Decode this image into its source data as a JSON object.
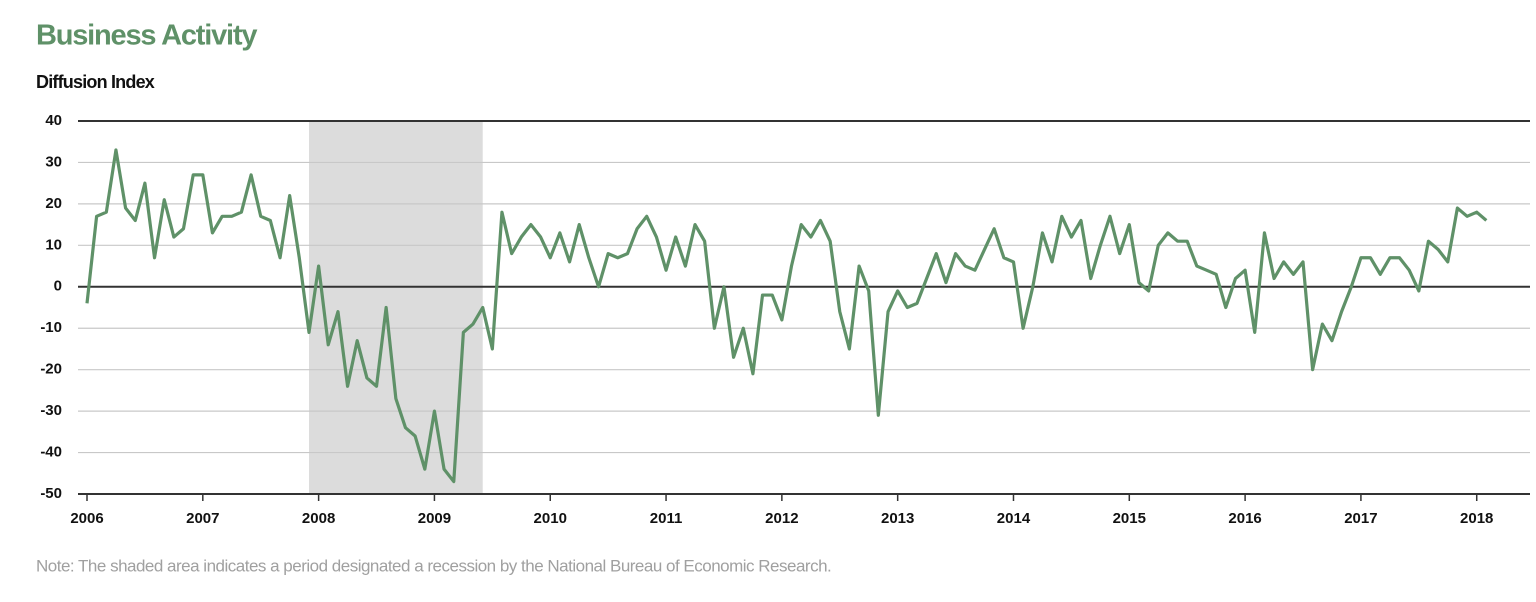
{
  "chart_data": {
    "type": "line",
    "title": "Business Activity",
    "subtitle": "Diffusion Index",
    "note": "Note: The shaded area indicates a period designated a recession by the National Bureau of Economic Research.",
    "x": [
      2006,
      2006.083,
      2006.167,
      2006.25,
      2006.333,
      2006.417,
      2006.5,
      2006.583,
      2006.667,
      2006.75,
      2006.833,
      2006.917,
      2007,
      2007.083,
      2007.167,
      2007.25,
      2007.333,
      2007.417,
      2007.5,
      2007.583,
      2007.667,
      2007.75,
      2007.833,
      2007.917,
      2008,
      2008.083,
      2008.167,
      2008.25,
      2008.333,
      2008.417,
      2008.5,
      2008.583,
      2008.667,
      2008.75,
      2008.833,
      2008.917,
      2009,
      2009.083,
      2009.167,
      2009.25,
      2009.333,
      2009.417,
      2009.5,
      2009.583,
      2009.667,
      2009.75,
      2009.833,
      2009.917,
      2010,
      2010.083,
      2010.167,
      2010.25,
      2010.333,
      2010.417,
      2010.5,
      2010.583,
      2010.667,
      2010.75,
      2010.833,
      2010.917,
      2011,
      2011.083,
      2011.167,
      2011.25,
      2011.333,
      2011.417,
      2011.5,
      2011.583,
      2011.667,
      2011.75,
      2011.833,
      2011.917,
      2012,
      2012.083,
      2012.167,
      2012.25,
      2012.333,
      2012.417,
      2012.5,
      2012.583,
      2012.667,
      2012.75,
      2012.833,
      2012.917,
      2013,
      2013.083,
      2013.167,
      2013.25,
      2013.333,
      2013.417,
      2013.5,
      2013.583,
      2013.667,
      2013.75,
      2013.833,
      2013.917,
      2014,
      2014.083,
      2014.167,
      2014.25,
      2014.333,
      2014.417,
      2014.5,
      2014.583,
      2014.667,
      2014.75,
      2014.833,
      2014.917,
      2015,
      2015.083,
      2015.167,
      2015.25,
      2015.333,
      2015.417,
      2015.5,
      2015.583,
      2015.667,
      2015.75,
      2015.833,
      2015.917,
      2016,
      2016.083,
      2016.167,
      2016.25,
      2016.333,
      2016.417,
      2016.5,
      2016.583,
      2016.667,
      2016.75,
      2016.833,
      2016.917,
      2017,
      2017.083,
      2017.167,
      2017.25,
      2017.333,
      2017.417,
      2017.5,
      2017.583,
      2017.667,
      2017.75,
      2017.833,
      2017.917,
      2018,
      2018.083
    ],
    "series": [
      {
        "name": "Business Activity",
        "color": "#5f9168",
        "values": [
          -4,
          17,
          18,
          33,
          19,
          16,
          25,
          7,
          21,
          12,
          14,
          27,
          27,
          13,
          17,
          17,
          18,
          27,
          17,
          16,
          7,
          22,
          7,
          -11,
          5,
          -14,
          -6,
          -24,
          -13,
          -22,
          -24,
          -5,
          -27,
          -34,
          -36,
          -44,
          -30,
          -44,
          -47,
          -11,
          -9,
          -5,
          -15,
          18,
          8,
          12,
          15,
          12,
          7,
          13,
          6,
          15,
          7,
          0,
          8,
          7,
          8,
          14,
          17,
          12,
          4,
          12,
          5,
          15,
          11,
          -10,
          0,
          -17,
          -10,
          -21,
          -2,
          -2,
          -8,
          5,
          15,
          12,
          16,
          11,
          -6,
          -15,
          5,
          -1,
          -31,
          -6,
          -1,
          -5,
          -4,
          2,
          8,
          1,
          8,
          5,
          4,
          9,
          14,
          7,
          6,
          -10,
          0,
          13,
          6,
          17,
          12,
          16,
          2,
          10,
          17,
          8,
          15,
          1,
          -1,
          10,
          13,
          11,
          11,
          5,
          4,
          3,
          -5,
          2,
          4,
          -11,
          13,
          2,
          6,
          3,
          6,
          -20,
          -9,
          -13,
          -6,
          0,
          7,
          7,
          3,
          7,
          7,
          4,
          -1,
          11,
          9,
          6,
          19,
          17,
          18,
          16
        ]
      }
    ],
    "recession": [
      2007.917,
      2009.417
    ],
    "recession_color": "#dcdcdc",
    "xlim": [
      2006,
      2018.46
    ],
    "xticks": [
      2006,
      2007,
      2008,
      2009,
      2010,
      2011,
      2012,
      2013,
      2014,
      2015,
      2016,
      2017,
      2018
    ],
    "ylim": [
      -50,
      40
    ],
    "yticks": [
      -50,
      -40,
      -30,
      -20,
      -10,
      0,
      10,
      20,
      30,
      40
    ],
    "grid": true
  }
}
